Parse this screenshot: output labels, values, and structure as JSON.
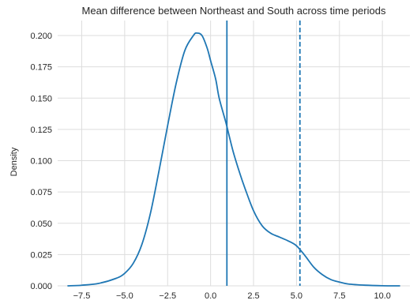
{
  "chart_data": {
    "type": "line",
    "title": "Mean difference between Northeast and South across time periods",
    "xlabel": "",
    "ylabel": "Density",
    "xlim": [
      -8.9,
      11.6
    ],
    "ylim": [
      0,
      0.212
    ],
    "x_ticks": [
      -7.5,
      -5.0,
      -2.5,
      0.0,
      2.5,
      5.0,
      7.5,
      10.0
    ],
    "x_tick_labels": [
      "−7.5",
      "−5.0",
      "−2.5",
      "0.0",
      "2.5",
      "5.0",
      "7.5",
      "10.0"
    ],
    "y_ticks": [
      0.0,
      0.025,
      0.05,
      0.075,
      0.1,
      0.125,
      0.15,
      0.175,
      0.2
    ],
    "y_tick_labels": [
      "0.000",
      "0.025",
      "0.050",
      "0.075",
      "0.100",
      "0.125",
      "0.150",
      "0.175",
      "0.200"
    ],
    "grid": true,
    "series": [
      {
        "color": "#1f77b4",
        "x": [
          -8.3,
          -7.5,
          -6.5,
          -5.5,
          -5.0,
          -4.5,
          -4.0,
          -3.5,
          -3.0,
          -2.5,
          -2.0,
          -1.5,
          -1.0,
          -0.8,
          -0.5,
          -0.2,
          0.0,
          0.3,
          0.5,
          0.9,
          1.3,
          1.7,
          2.0,
          2.5,
          3.0,
          3.5,
          4.0,
          4.5,
          5.0,
          5.5,
          6.0,
          6.5,
          7.0,
          7.5,
          8.0,
          9.0,
          10.0,
          11.0
        ],
        "y": [
          0.0,
          0.0005,
          0.002,
          0.006,
          0.01,
          0.018,
          0.033,
          0.058,
          0.092,
          0.128,
          0.162,
          0.188,
          0.2,
          0.202,
          0.2,
          0.19,
          0.18,
          0.165,
          0.15,
          0.13,
          0.108,
          0.09,
          0.078,
          0.06,
          0.048,
          0.042,
          0.039,
          0.036,
          0.032,
          0.024,
          0.015,
          0.009,
          0.005,
          0.003,
          0.0015,
          0.0005,
          0.0001,
          0.0
        ]
      }
    ],
    "vlines": [
      {
        "x": 0.95,
        "style": "solid",
        "color": "#1f77b4"
      },
      {
        "x": 5.2,
        "style": "dashed",
        "color": "#1f77b4"
      }
    ],
    "colors": {
      "grid": "#dddddd",
      "axis_text": "#262626",
      "line": "#1f77b4"
    }
  }
}
